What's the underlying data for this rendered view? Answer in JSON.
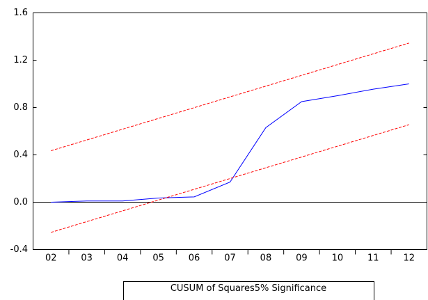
{
  "chart_data": {
    "type": "line",
    "categories": [
      "02",
      "03",
      "04",
      "05",
      "06",
      "07",
      "08",
      "09",
      "10",
      "11",
      "12"
    ],
    "series": [
      {
        "name": "CUSUM of Squares",
        "color": "#0000ff",
        "dashed": false,
        "values": [
          0.0,
          0.01,
          0.01,
          0.035,
          0.045,
          0.17,
          0.63,
          0.85,
          0.9,
          0.955,
          1.0
        ]
      },
      {
        "name": "5% Significance",
        "color": "#ff0000",
        "dashed": true,
        "values": [
          0.435,
          0.526,
          0.617,
          0.708,
          0.799,
          0.89,
          0.981,
          1.072,
          1.163,
          1.254,
          1.345
        ]
      },
      {
        "color": "#ff0000",
        "dashed": true,
        "values": [
          -0.255,
          -0.164,
          -0.073,
          0.018,
          0.109,
          0.2,
          0.291,
          0.382,
          0.473,
          0.564,
          0.655
        ]
      }
    ],
    "ylim": [
      -0.4,
      1.6
    ],
    "yticks": [
      -0.4,
      {
        "value": 0,
        "label": "0.0"
      },
      0.4,
      0.8,
      1.2,
      1.6
    ],
    "zero_line": true
  }
}
